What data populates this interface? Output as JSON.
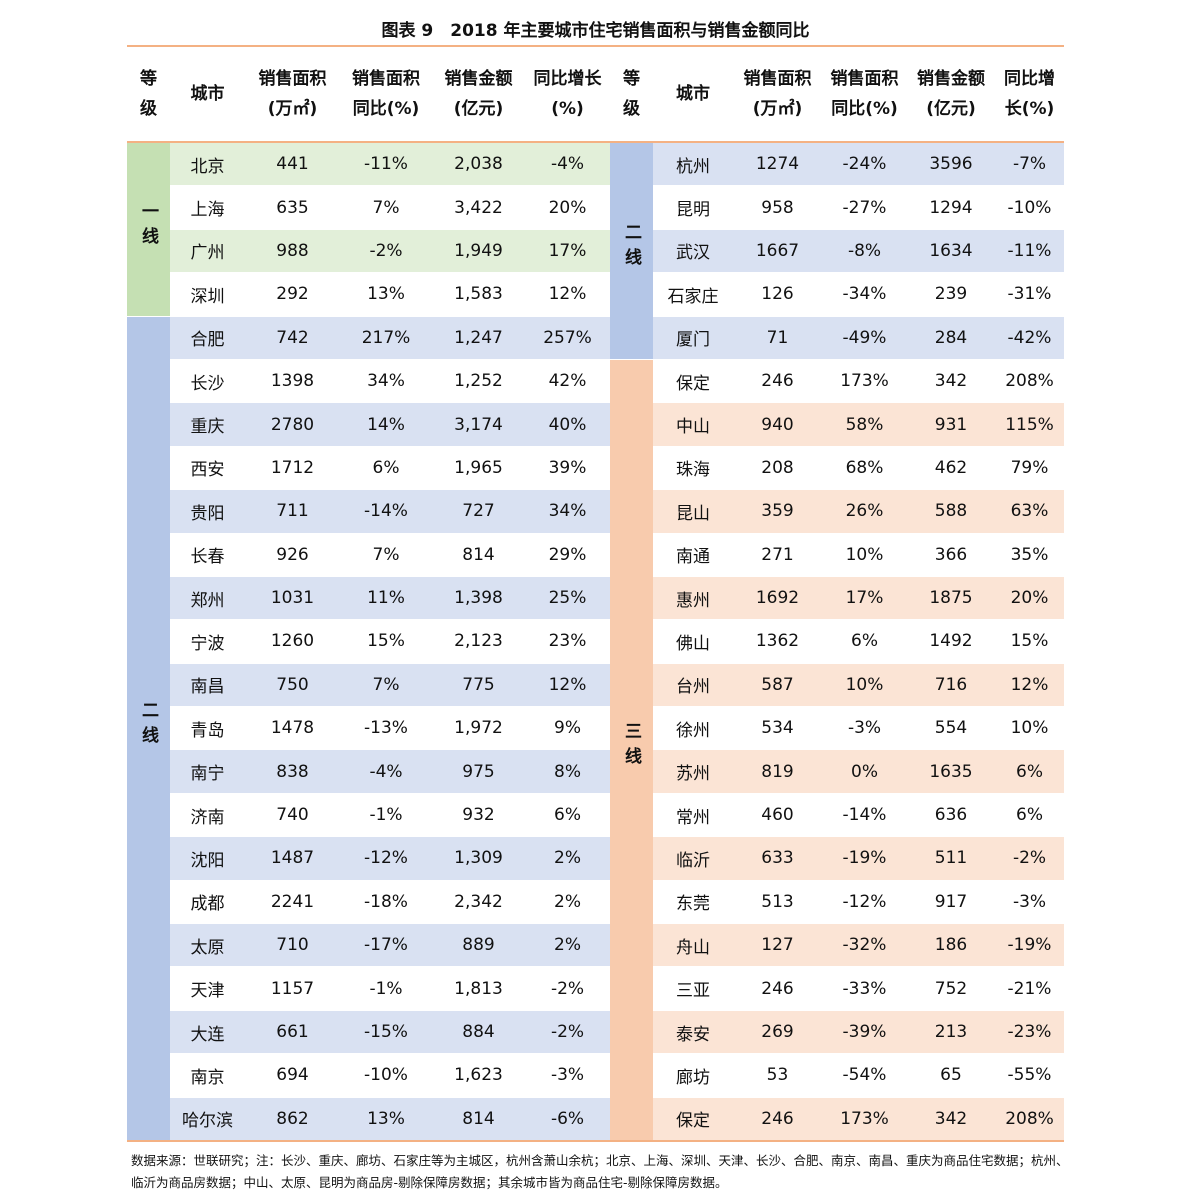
{
  "title": "图表 9　2018 年主要城市住宅销售面积与销售金额同比",
  "header": [
    [
      "等",
      "级"
    ],
    [
      "城市"
    ],
    [
      "销售面积",
      "(万㎡)"
    ],
    [
      "销售面积",
      "同比(%)"
    ],
    [
      "销售金额",
      "(亿元)"
    ],
    [
      "同比增长",
      "(%)"
    ],
    [
      "等",
      "级"
    ],
    [
      "城市"
    ],
    [
      "销售面积",
      "(万㎡)"
    ],
    [
      "销售面积",
      "同比(%)"
    ],
    [
      "销售金额",
      "(亿元)"
    ],
    [
      "同比增",
      "长(%)"
    ]
  ],
  "left_tiers": [
    {
      "label": "一线",
      "rows": [
        [
          "北京",
          "441",
          "-11%",
          "2,038",
          "-4%"
        ],
        [
          "上海",
          "635",
          "7%",
          "3,422",
          "20%"
        ],
        [
          "广州",
          "988",
          "-2%",
          "1,949",
          "17%"
        ],
        [
          "深圳",
          "292",
          "13%",
          "1,583",
          "12%"
        ]
      ]
    },
    {
      "label": "二线",
      "rows": [
        [
          "合肥",
          "742",
          "217%",
          "1,247",
          "257%"
        ],
        [
          "长沙",
          "1398",
          "34%",
          "1,252",
          "42%"
        ],
        [
          "重庆",
          "2780",
          "14%",
          "3,174",
          "40%"
        ],
        [
          "西安",
          "1712",
          "6%",
          "1,965",
          "39%"
        ],
        [
          "贵阳",
          "711",
          "-14%",
          "727",
          "34%"
        ],
        [
          "长春",
          "926",
          "7%",
          "814",
          "29%"
        ],
        [
          "郑州",
          "1031",
          "11%",
          "1,398",
          "25%"
        ],
        [
          "宁波",
          "1260",
          "15%",
          "2,123",
          "23%"
        ],
        [
          "南昌",
          "750",
          "7%",
          "775",
          "12%"
        ],
        [
          "青岛",
          "1478",
          "-13%",
          "1,972",
          "9%"
        ],
        [
          "南宁",
          "838",
          "-4%",
          "975",
          "8%"
        ],
        [
          "济南",
          "740",
          "-1%",
          "932",
          "6%"
        ],
        [
          "沈阳",
          "1487",
          "-12%",
          "1,309",
          "2%"
        ],
        [
          "成都",
          "2241",
          "-18%",
          "2,342",
          "2%"
        ],
        [
          "太原",
          "710",
          "-17%",
          "889",
          "2%"
        ],
        [
          "天津",
          "1157",
          "-1%",
          "1,813",
          "-2%"
        ],
        [
          "大连",
          "661",
          "-15%",
          "884",
          "-2%"
        ],
        [
          "南京",
          "694",
          "-10%",
          "1,623",
          "-3%"
        ],
        [
          "哈尔滨",
          "862",
          "13%",
          "814",
          "-6%"
        ]
      ]
    }
  ],
  "right_tiers": [
    {
      "label": "二线",
      "rows": [
        [
          "杭州",
          "1274",
          "-24%",
          "3596",
          "-7%"
        ],
        [
          "昆明",
          "958",
          "-27%",
          "1294",
          "-10%"
        ],
        [
          "武汉",
          "1667",
          "-8%",
          "1634",
          "-11%"
        ],
        [
          "石家庄",
          "126",
          "-34%",
          "239",
          "-31%"
        ],
        [
          "厦门",
          "71",
          "-49%",
          "284",
          "-42%"
        ]
      ]
    },
    {
      "label": "三线",
      "rows": [
        [
          "保定",
          "246",
          "173%",
          "342",
          "208%"
        ],
        [
          "中山",
          "940",
          "58%",
          "931",
          "115%"
        ],
        [
          "珠海",
          "208",
          "68%",
          "462",
          "79%"
        ],
        [
          "昆山",
          "359",
          "26%",
          "588",
          "63%"
        ],
        [
          "南通",
          "271",
          "10%",
          "366",
          "35%"
        ],
        [
          "惠州",
          "1692",
          "17%",
          "1875",
          "20%"
        ],
        [
          "佛山",
          "1362",
          "6%",
          "1492",
          "15%"
        ],
        [
          "台州",
          "587",
          "10%",
          "716",
          "12%"
        ],
        [
          "徐州",
          "534",
          "-3%",
          "554",
          "10%"
        ],
        [
          "苏州",
          "819",
          "0%",
          "1635",
          "6%"
        ],
        [
          "常州",
          "460",
          "-14%",
          "636",
          "6%"
        ],
        [
          "临沂",
          "633",
          "-19%",
          "511",
          "-2%"
        ],
        [
          "东莞",
          "513",
          "-12%",
          "917",
          "-3%"
        ],
        [
          "舟山",
          "127",
          "-32%",
          "186",
          "-19%"
        ],
        [
          "三亚",
          "246",
          "-33%",
          "752",
          "-21%"
        ],
        [
          "泰安",
          "269",
          "-39%",
          "213",
          "-23%"
        ],
        [
          "廊坊",
          "53",
          "-54%",
          "65",
          "-55%"
        ],
        [
          "保定",
          "246",
          "173%",
          "342",
          "208%"
        ]
      ]
    }
  ],
  "footnote": "数据来源：世联研究；注：长沙、重庆、廊坊、石家庄等为主城区，杭州含萧山余杭；北京、上海、深圳、天津、长沙、合肥、南京、南昌、重庆为商品住宅数据；杭州、临沂为商品房数据；中山、太原、昆明为商品房-剔除保障房数据；其余城市皆为商品住宅-剔除保障房数据。"
}
